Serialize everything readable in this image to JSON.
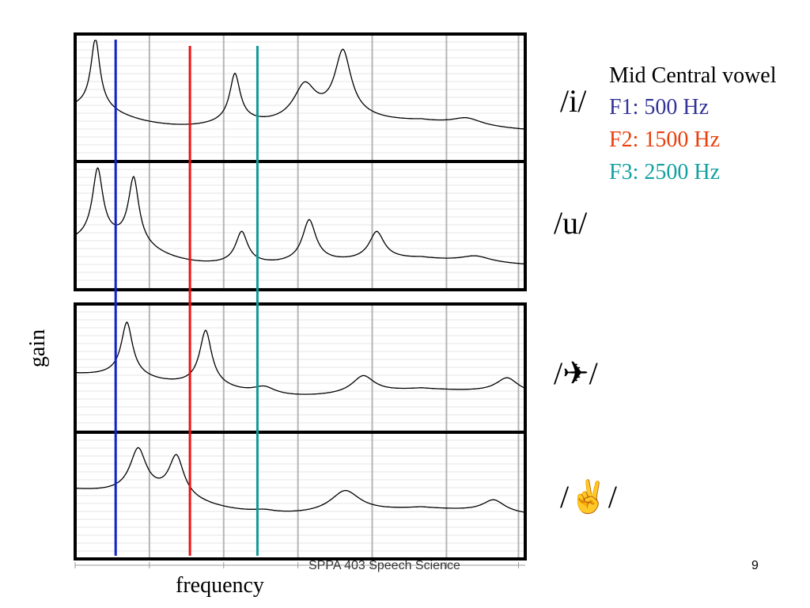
{
  "chart_data": {
    "type": "line",
    "title": "",
    "xlabel": "frequency",
    "ylabel": "gain",
    "grid": true,
    "legend": {
      "heading": "Mid Central vowel",
      "entries": [
        {
          "label": "F1: 500 Hz",
          "color": "#333399",
          "line_color": "#1122cc",
          "x_frac": 0.09
        },
        {
          "label": "F2: 1500 Hz",
          "color": "#e8400c",
          "line_color": "#ee1111",
          "x_frac": 0.255
        },
        {
          "label": "F3: 2500 Hz",
          "color": "#13a0a0",
          "line_color": "#119999",
          "x_frac": 0.405
        }
      ]
    },
    "panels": [
      {
        "label": "/i/",
        "baseline": 0.35,
        "peaks": [
          [
            0.045,
            0.55,
            0.012
          ],
          [
            0.355,
            0.38,
            0.014
          ],
          [
            0.51,
            0.28,
            0.03
          ],
          [
            0.595,
            0.52,
            0.022
          ],
          [
            0.87,
            0.06,
            0.04
          ]
        ]
      },
      {
        "label": "/u/",
        "baseline": 0.28,
        "peaks": [
          [
            0.05,
            0.55,
            0.014
          ],
          [
            0.13,
            0.52,
            0.014
          ],
          [
            0.37,
            0.25,
            0.016
          ],
          [
            0.52,
            0.33,
            0.018
          ],
          [
            0.67,
            0.22,
            0.02
          ],
          [
            0.89,
            0.05,
            0.04
          ]
        ]
      },
      {
        "label": "/✈/",
        "baseline": 0.42,
        "peaks": [
          [
            0.115,
            0.42,
            0.015
          ],
          [
            0.29,
            0.43,
            0.016
          ],
          [
            0.42,
            0.06,
            0.03
          ],
          [
            0.64,
            0.14,
            0.03
          ],
          [
            0.96,
            0.12,
            0.03
          ]
        ]
      },
      {
        "label": "/✌/",
        "baseline": 0.5,
        "peaks": [
          [
            0.14,
            0.35,
            0.022
          ],
          [
            0.225,
            0.33,
            0.02
          ],
          [
            0.42,
            0.02,
            0.03
          ],
          [
            0.6,
            0.18,
            0.04
          ],
          [
            0.93,
            0.1,
            0.03
          ]
        ]
      }
    ]
  },
  "footer": {
    "course": "SPPA 403 Speech Science",
    "page": "9"
  }
}
